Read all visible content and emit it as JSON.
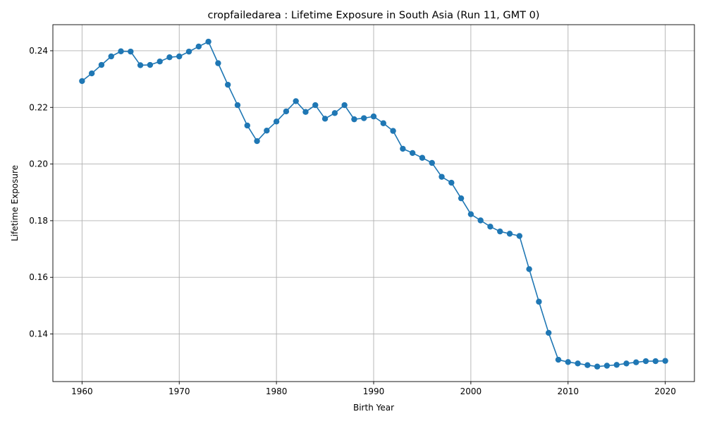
{
  "chart_data": {
    "type": "line",
    "title": "cropfailedarea : Lifetime Exposure in South Asia (Run 11, GMT 0)",
    "xlabel": "Birth Year",
    "ylabel": "Lifetime Exposure",
    "xlim": [
      1957,
      2023
    ],
    "ylim": [
      0.1232,
      0.2492
    ],
    "xticks": [
      1960,
      1970,
      1980,
      1990,
      2000,
      2010,
      2020
    ],
    "yticks": [
      0.14,
      0.16,
      0.18,
      0.2,
      0.22,
      0.24
    ],
    "ytick_labels": [
      "0.14",
      "0.16",
      "0.18",
      "0.20",
      "0.22",
      "0.24"
    ],
    "grid": true,
    "color": "#1f77b4",
    "marker": "circle",
    "series": [
      {
        "x": [
          1960,
          1961,
          1962,
          1963,
          1964,
          1965,
          1966,
          1967,
          1968,
          1969,
          1970,
          1971,
          1972,
          1973,
          1974,
          1975,
          1976,
          1977,
          1978,
          1979,
          1980,
          1981,
          1982,
          1983,
          1984,
          1985,
          1986,
          1987,
          1988,
          1989,
          1990,
          1991,
          1992,
          1993,
          1994,
          1995,
          1996,
          1997,
          1998,
          1999,
          2000,
          2001,
          2002,
          2003,
          2004,
          2005,
          2006,
          2007,
          2008,
          2009,
          2010,
          2011,
          2012,
          2013,
          2014,
          2015,
          2016,
          2017,
          2018,
          2019,
          2020
        ],
        "values": [
          0.2293,
          0.232,
          0.235,
          0.238,
          0.2398,
          0.2397,
          0.2349,
          0.235,
          0.2362,
          0.2377,
          0.238,
          0.2397,
          0.2415,
          0.2432,
          0.2356,
          0.228,
          0.2208,
          0.2136,
          0.2081,
          0.2118,
          0.215,
          0.2186,
          0.2222,
          0.2184,
          0.2208,
          0.216,
          0.218,
          0.2208,
          0.2158,
          0.2162,
          0.2168,
          0.2144,
          0.2117,
          0.2054,
          0.2039,
          0.2022,
          0.2004,
          0.1955,
          0.1934,
          0.1879,
          0.1823,
          0.1801,
          0.1779,
          0.1762,
          0.1754,
          0.1746,
          0.1629,
          0.1514,
          0.1404,
          0.1309,
          0.1301,
          0.1296,
          0.129,
          0.1285,
          0.1288,
          0.1291,
          0.1296,
          0.13,
          0.1304,
          0.1304,
          0.1305
        ]
      }
    ]
  }
}
